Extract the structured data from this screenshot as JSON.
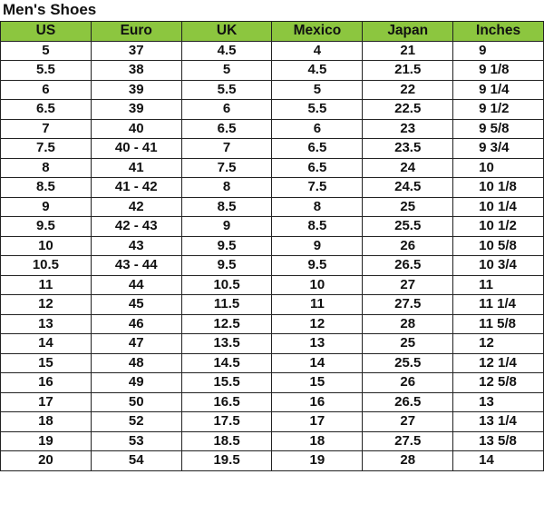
{
  "title": "Men's Shoes",
  "header_color": "#8cc63f",
  "columns": [
    "US",
    "Euro",
    "UK",
    "Mexico",
    "Japan",
    "Inches"
  ],
  "rows": [
    [
      "5",
      "37",
      "4.5",
      "4",
      "21",
      "9"
    ],
    [
      "5.5",
      "38",
      "5",
      "4.5",
      "21.5",
      "9 1/8"
    ],
    [
      "6",
      "39",
      "5.5",
      "5",
      "22",
      "9 1/4"
    ],
    [
      "6.5",
      "39",
      "6",
      "5.5",
      "22.5",
      "9 1/2"
    ],
    [
      "7",
      "40",
      "6.5",
      "6",
      "23",
      "9 5/8"
    ],
    [
      "7.5",
      "40 - 41",
      "7",
      "6.5",
      "23.5",
      "9 3/4"
    ],
    [
      "8",
      "41",
      "7.5",
      "6.5",
      "24",
      "10"
    ],
    [
      "8.5",
      "41 - 42",
      "8",
      "7.5",
      "24.5",
      "10 1/8"
    ],
    [
      "9",
      "42",
      "8.5",
      "8",
      "25",
      "10 1/4"
    ],
    [
      "9.5",
      "42 - 43",
      "9",
      "8.5",
      "25.5",
      "10 1/2"
    ],
    [
      "10",
      "43",
      "9.5",
      "9",
      "26",
      "10 5/8"
    ],
    [
      "10.5",
      "43 - 44",
      "9.5",
      "9.5",
      "26.5",
      "10 3/4"
    ],
    [
      "11",
      "44",
      "10.5",
      "10",
      "27",
      "11"
    ],
    [
      "12",
      "45",
      "11.5",
      "11",
      "27.5",
      "11 1/4"
    ],
    [
      "13",
      "46",
      "12.5",
      "12",
      "28",
      "11 5/8"
    ],
    [
      "14",
      "47",
      "13.5",
      "13",
      "25",
      "12"
    ],
    [
      "15",
      "48",
      "14.5",
      "14",
      "25.5",
      "12 1/4"
    ],
    [
      "16",
      "49",
      "15.5",
      "15",
      "26",
      "12 5/8"
    ],
    [
      "17",
      "50",
      "16.5",
      "16",
      "26.5",
      "13"
    ],
    [
      "18",
      "52",
      "17.5",
      "17",
      "27",
      "13 1/4"
    ],
    [
      "19",
      "53",
      "18.5",
      "18",
      "27.5",
      "13 5/8"
    ],
    [
      "20",
      "54",
      "19.5",
      "19",
      "28",
      "14"
    ]
  ]
}
